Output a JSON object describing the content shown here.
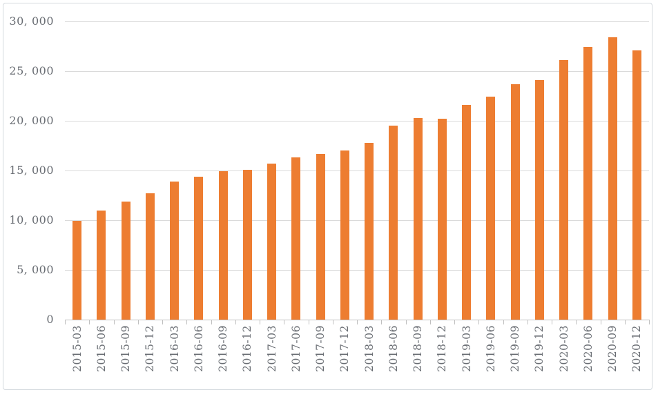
{
  "chart_data": {
    "type": "bar",
    "title": "",
    "xlabel": "",
    "ylabel": "",
    "legend": false,
    "grid": true,
    "categories": [
      "2015-03",
      "2015-06",
      "2015-09",
      "2015-12",
      "2016-03",
      "2016-06",
      "2016-09",
      "2016-12",
      "2017-03",
      "2017-06",
      "2017-09",
      "2017-12",
      "2018-03",
      "2018-06",
      "2018-09",
      "2018-12",
      "2019-03",
      "2019-06",
      "2019-09",
      "2019-12",
      "2020-03",
      "2020-06",
      "2020-09",
      "2020-12"
    ],
    "values": [
      9900,
      11000,
      11900,
      12700,
      13900,
      14400,
      14900,
      15100,
      15700,
      16300,
      16700,
      17000,
      17800,
      19500,
      20300,
      20200,
      21600,
      22400,
      23700,
      24100,
      26100,
      27400,
      28400,
      27100
    ],
    "ylim": [
      0,
      30000
    ],
    "y_axis": {
      "tick_values": [
        0,
        5000,
        10000,
        15000,
        20000,
        25000,
        30000
      ],
      "tick_labels": [
        "0",
        "5, 000",
        "10, 000",
        "15, 000",
        "20, 000",
        "25, 000",
        "30, 000"
      ]
    },
    "colors": {
      "bar": "#ED7D31",
      "gridline": "#D9D9D9",
      "axis_line": "#BFBFBF",
      "tick_text": "#696D73",
      "frame_border": "#D3D8DD",
      "background": "#FFFFFF"
    }
  }
}
